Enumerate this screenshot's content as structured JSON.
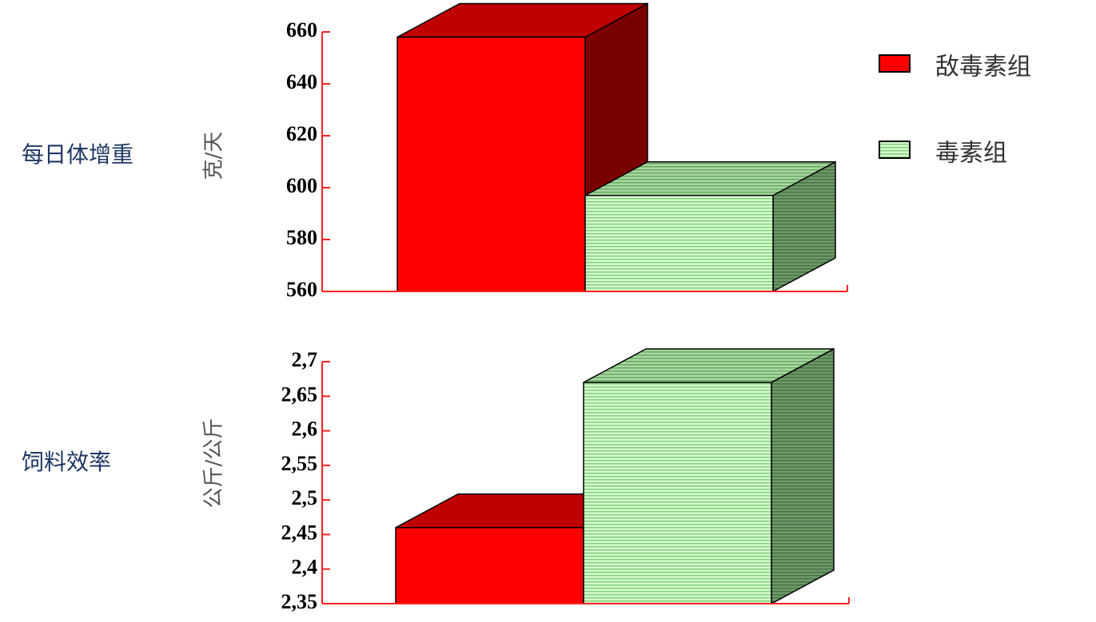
{
  "chart_data": [
    {
      "type": "bar3d",
      "title": "每日体增重",
      "y_label": "克/天",
      "categories": [
        null
      ],
      "series": [
        {
          "name": "敌毒素组",
          "color": "#ff0000",
          "values": [
            658
          ]
        },
        {
          "name": "毒素组",
          "color": "#c8f5c0",
          "values": [
            597
          ]
        }
      ],
      "ylim": [
        560,
        660
      ],
      "yticks": [
        560,
        580,
        600,
        620,
        640,
        660
      ],
      "legend": "top-right"
    },
    {
      "type": "bar3d",
      "title": "饲料效率",
      "y_label": "公斤/公斤",
      "categories": [
        null
      ],
      "series": [
        {
          "color": "#ff0000",
          "values": [
            2.46
          ]
        },
        {
          "color": "#c8f5c0",
          "values": [
            2.67
          ]
        }
      ],
      "ylim": [
        2.35,
        2.7
      ],
      "yticks": [
        {
          "value": 2.35,
          "label": "2,35"
        },
        {
          "value": 2.4,
          "label": "2,4"
        },
        {
          "value": 2.45,
          "label": "2,45"
        },
        {
          "value": 2.5,
          "label": "2,5"
        },
        {
          "value": 2.55,
          "label": "2,55"
        },
        {
          "value": 2.6,
          "label": "2,6"
        },
        {
          "value": 2.65,
          "label": "2,65"
        },
        {
          "value": 2.7,
          "label": "2,7"
        }
      ]
    }
  ]
}
